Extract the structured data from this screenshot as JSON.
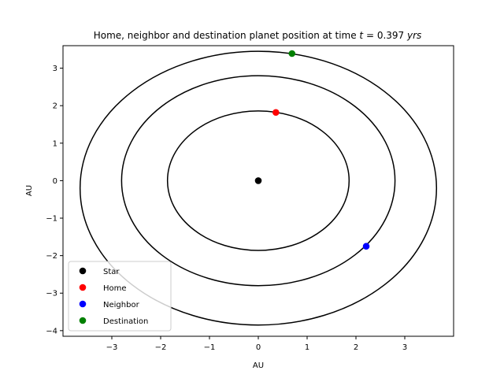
{
  "chart_data": {
    "type": "scatter",
    "title_prefix": "Home, neighbor and destination planet position at time ",
    "title_var": "t",
    "title_eq": " = 0.397 ",
    "title_unit": "yrs",
    "xlabel": "AU",
    "ylabel": "AU",
    "xlim": [
      -4.0,
      4.0
    ],
    "ylim": [
      -4.15,
      3.6
    ],
    "xticks": [
      -3,
      -2,
      -1,
      0,
      1,
      2,
      3
    ],
    "yticks": [
      -4,
      -3,
      -2,
      -1,
      0,
      1,
      2,
      3
    ],
    "xtick_labels": [
      "−3",
      "−2",
      "−1",
      "0",
      "1",
      "2",
      "3"
    ],
    "ytick_labels": [
      "−4",
      "−3",
      "−2",
      "−1",
      "0",
      "1",
      "2",
      "3"
    ],
    "grid": false,
    "legend_position": "lower-left",
    "orbits": [
      {
        "name": "home-orbit",
        "cx": 0,
        "cy": 0,
        "rx": 1.86,
        "ry": 1.86
      },
      {
        "name": "neighbor-orbit",
        "cx": 0,
        "cy": 0,
        "rx": 2.8,
        "ry": 2.8
      },
      {
        "name": "destination-orbit",
        "cx": 0,
        "cy": -0.2,
        "rx": 3.65,
        "ry": 3.65
      }
    ],
    "series": [
      {
        "name": "Star",
        "color": "#000000",
        "x": [
          0.0
        ],
        "y": [
          0.0
        ]
      },
      {
        "name": "Home",
        "color": "#ff0000",
        "x": [
          0.36
        ],
        "y": [
          1.82
        ]
      },
      {
        "name": "Neighbor",
        "color": "#0000ff",
        "x": [
          2.21
        ],
        "y": [
          -1.75
        ]
      },
      {
        "name": "Destination",
        "color": "#008000",
        "x": [
          0.69
        ],
        "y": [
          3.39
        ]
      }
    ]
  }
}
